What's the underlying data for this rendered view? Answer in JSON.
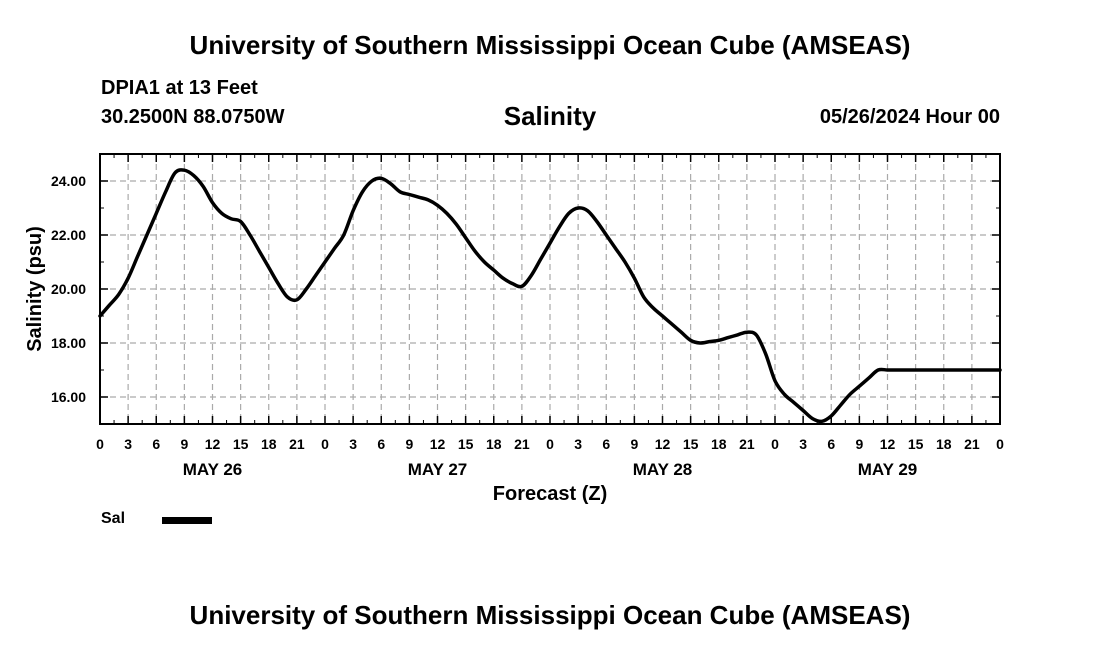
{
  "header": {
    "title_top": "University of Southern Mississippi Ocean Cube (AMSEAS)",
    "title_bottom": "University of Southern Mississippi Ocean Cube (AMSEAS)",
    "station": "DPIA1 at 13 Feet",
    "coords": "30.2500N  88.0750W",
    "datetime": "05/26/2024 Hour 00"
  },
  "chart_data": {
    "type": "line",
    "title": "Salinity",
    "xlabel": "Forecast (Z)",
    "ylabel": "Salinity (psu)",
    "ylim": [
      15,
      25
    ],
    "xlim": [
      0,
      96
    ],
    "grid": true,
    "y_ticks": [
      "16.00",
      "18.00",
      "20.00",
      "22.00",
      "24.00"
    ],
    "y_tick_values": [
      16,
      18,
      20,
      22,
      24
    ],
    "x_tick_labels": [
      "0",
      "3",
      "6",
      "9",
      "12",
      "15",
      "18",
      "21",
      "0",
      "3",
      "6",
      "9",
      "12",
      "15",
      "18",
      "21",
      "0",
      "3",
      "6",
      "9",
      "12",
      "15",
      "18",
      "21",
      "0",
      "3",
      "6",
      "9",
      "12",
      "15",
      "18",
      "21",
      "0"
    ],
    "day_labels": [
      {
        "label": "MAY 26",
        "hour": 12
      },
      {
        "label": "MAY 27",
        "hour": 36
      },
      {
        "label": "MAY 28",
        "hour": 60
      },
      {
        "label": "MAY 29",
        "hour": 84
      }
    ],
    "legend": [
      {
        "name": "Sal"
      }
    ],
    "series": [
      {
        "name": "Sal",
        "x": [
          0,
          1,
          2,
          3,
          4,
          5,
          6,
          7,
          8,
          9,
          10,
          11,
          12,
          13,
          14,
          15,
          16,
          17,
          18,
          19,
          20,
          21,
          22,
          23,
          24,
          25,
          26,
          27,
          28,
          29,
          30,
          31,
          32,
          33,
          34,
          35,
          36,
          37,
          38,
          39,
          40,
          41,
          42,
          43,
          44,
          45,
          46,
          47,
          48,
          49,
          50,
          51,
          52,
          53,
          54,
          55,
          56,
          57,
          58,
          59,
          60,
          61,
          62,
          63,
          64,
          65,
          66,
          67,
          68,
          69,
          70,
          71,
          72,
          73,
          74,
          75,
          76,
          77,
          78,
          79,
          80,
          81,
          82,
          83,
          84,
          85,
          86,
          87,
          88,
          89,
          90,
          91,
          92,
          93,
          94,
          95,
          96
        ],
        "values": [
          19.0,
          19.4,
          19.8,
          20.4,
          21.2,
          22.0,
          22.8,
          23.6,
          24.3,
          24.4,
          24.2,
          23.8,
          23.2,
          22.8,
          22.6,
          22.5,
          22.0,
          21.4,
          20.8,
          20.2,
          19.7,
          19.6,
          20.0,
          20.5,
          21.0,
          21.5,
          22.0,
          22.9,
          23.6,
          24.0,
          24.1,
          23.9,
          23.6,
          23.5,
          23.4,
          23.3,
          23.1,
          22.8,
          22.4,
          21.9,
          21.4,
          21.0,
          20.7,
          20.4,
          20.2,
          20.1,
          20.5,
          21.1,
          21.7,
          22.3,
          22.8,
          23.0,
          22.9,
          22.5,
          22.0,
          21.5,
          21.0,
          20.4,
          19.7,
          19.3,
          19.0,
          18.7,
          18.4,
          18.1,
          18.0,
          18.05,
          18.1,
          18.2,
          18.3,
          18.4,
          18.3,
          17.6,
          16.6,
          16.1,
          15.8,
          15.5,
          15.2,
          15.1,
          15.3,
          15.7,
          16.1,
          16.4,
          16.7,
          17.0,
          17.0,
          17.0,
          17.0,
          17.0,
          17.0,
          17.0,
          17.0,
          17.0,
          17.0,
          17.0,
          17.0,
          17.0,
          17.0
        ]
      }
    ]
  }
}
